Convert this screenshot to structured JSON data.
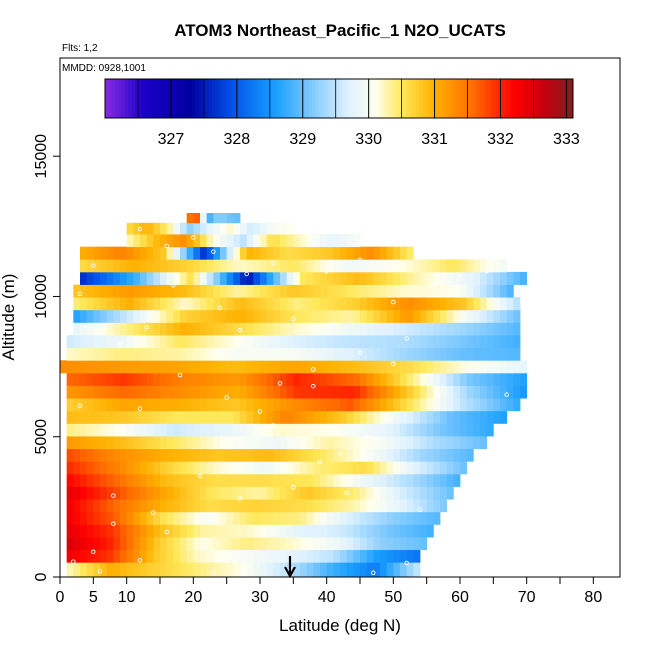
{
  "chart_data": {
    "type": "heatmap",
    "title": "ATOM3 Northeast_Pacific_1 N2O_UCATS",
    "flights_note": "Flts: 1,2",
    "dates_note": "MMDD: 0928,1001",
    "xlabel": "Latitude (deg N)",
    "ylabel": "Altitude (m)",
    "xlim": [
      0,
      84
    ],
    "ylim": [
      0,
      18500
    ],
    "x_ticks": [
      0,
      5,
      10,
      20,
      30,
      40,
      50,
      60,
      70,
      80
    ],
    "x_tick_labels": [
      "0",
      "5",
      "10",
      "20",
      "30",
      "40",
      "50",
      "60",
      "70",
      "80"
    ],
    "x_minor_ticks": [
      15,
      25,
      35,
      45,
      55,
      65,
      75
    ],
    "y_ticks": [
      0,
      5000,
      10000,
      15000
    ],
    "y_tick_labels": [
      "0",
      "5000",
      "10000",
      "15000"
    ],
    "colorbar": {
      "min": 326.0,
      "max": 333.1,
      "ticks": [
        327,
        328,
        329,
        330,
        331,
        332,
        333
      ],
      "tick_labels": [
        "327",
        "328",
        "329",
        "330",
        "331",
        "332",
        "333"
      ],
      "stops": [
        {
          "v": 326.0,
          "c": "#8a2be2"
        },
        {
          "v": 326.6,
          "c": "#1a00c8"
        },
        {
          "v": 327.3,
          "c": "#0000a0"
        },
        {
          "v": 327.9,
          "c": "#0050e8"
        },
        {
          "v": 328.6,
          "c": "#1aa0ff"
        },
        {
          "v": 329.2,
          "c": "#8ccfff"
        },
        {
          "v": 329.7,
          "c": "#e0f2ff"
        },
        {
          "v": 330.1,
          "c": "#fffff0"
        },
        {
          "v": 330.5,
          "c": "#ffe85a"
        },
        {
          "v": 331.0,
          "c": "#ffb000"
        },
        {
          "v": 331.6,
          "c": "#ff6a00"
        },
        {
          "v": 332.2,
          "c": "#ff0000"
        },
        {
          "v": 332.7,
          "c": "#c00010"
        },
        {
          "v": 333.1,
          "c": "#802020"
        }
      ]
    },
    "arrow_latitude": 34.5,
    "layers": [
      {
        "alt": 300,
        "lat0": 1,
        "lat1": 54,
        "v": [
          330.2,
          331.0,
          330.7,
          330.4,
          330.1,
          329.5,
          328.8,
          328.3,
          329.6
        ]
      },
      {
        "alt": 750,
        "lat0": 1,
        "lat1": 54,
        "v": [
          332.3,
          331.9,
          330.8,
          330.2,
          330.0,
          329.8,
          329.5,
          328.6,
          328.2
        ]
      },
      {
        "alt": 1200,
        "lat0": 1,
        "lat1": 55,
        "v": [
          332.5,
          332.0,
          330.8,
          330.1,
          330.4,
          330.2,
          329.9,
          329.2,
          329.0
        ]
      },
      {
        "alt": 1650,
        "lat0": 1,
        "lat1": 56,
        "v": [
          332.4,
          331.9,
          330.9,
          330.3,
          330.2,
          329.8,
          329.6,
          329.1,
          328.8
        ]
      },
      {
        "alt": 2100,
        "lat0": 1,
        "lat1": 57,
        "v": [
          332.3,
          331.7,
          330.6,
          330.0,
          330.5,
          330.4,
          329.7,
          329.2,
          328.9
        ]
      },
      {
        "alt": 2550,
        "lat0": 1,
        "lat1": 58,
        "v": [
          332.3,
          331.6,
          331.0,
          330.6,
          330.7,
          330.6,
          330.3,
          329.8,
          329.1
        ]
      },
      {
        "alt": 3000,
        "lat0": 1,
        "lat1": 59,
        "v": [
          332.4,
          331.8,
          331.1,
          330.5,
          330.3,
          330.8,
          330.4,
          329.6,
          329.0
        ]
      },
      {
        "alt": 3450,
        "lat0": 1,
        "lat1": 60,
        "v": [
          332.2,
          331.6,
          330.9,
          330.6,
          330.6,
          330.5,
          329.9,
          329.4,
          328.8
        ]
      },
      {
        "alt": 3900,
        "lat0": 1,
        "lat1": 61,
        "v": [
          332.0,
          331.4,
          330.7,
          330.2,
          329.9,
          330.4,
          330.6,
          329.7,
          329.0
        ]
      },
      {
        "alt": 4350,
        "lat0": 1,
        "lat1": 62,
        "v": [
          331.8,
          331.3,
          331.0,
          330.8,
          330.9,
          330.5,
          330.0,
          329.3,
          328.9
        ]
      },
      {
        "alt": 4800,
        "lat0": 1,
        "lat1": 64,
        "v": [
          331.2,
          330.9,
          330.5,
          330.1,
          329.9,
          330.3,
          330.0,
          329.4,
          329.0
        ]
      },
      {
        "alt": 5250,
        "lat0": 1,
        "lat1": 65,
        "v": [
          330.4,
          330.1,
          329.6,
          329.8,
          330.2,
          330.1,
          329.8,
          329.1,
          328.7
        ]
      },
      {
        "alt": 5700,
        "lat0": 1,
        "lat1": 67,
        "v": [
          330.9,
          330.8,
          330.5,
          330.5,
          331.4,
          330.8,
          329.9,
          329.0,
          328.6
        ]
      },
      {
        "alt": 6150,
        "lat0": 1,
        "lat1": 69,
        "v": [
          330.7,
          331.1,
          331.0,
          330.8,
          331.3,
          331.7,
          330.6,
          329.5,
          328.7
        ]
      },
      {
        "alt": 6600,
        "lat0": 1,
        "lat1": 70,
        "v": [
          331.2,
          331.6,
          331.3,
          331.0,
          331.9,
          332.0,
          330.7,
          329.3,
          328.5
        ]
      },
      {
        "alt": 7050,
        "lat0": 1,
        "lat1": 70,
        "v": [
          331.6,
          331.9,
          331.4,
          331.2,
          332.0,
          331.6,
          330.4,
          329.1,
          328.6
        ]
      },
      {
        "alt": 7500,
        "lat0": 0,
        "lat1": 70,
        "v": [
          331.3,
          331.2,
          331.1,
          330.9,
          331.1,
          330.9,
          330.6,
          330.1,
          329.8
        ]
      },
      {
        "alt": 7950,
        "lat0": 1,
        "lat1": 69,
        "v": [
          330.2,
          330.4,
          330.3,
          330.0,
          330.0,
          329.7,
          329.3,
          329.0,
          328.9
        ]
      },
      {
        "alt": 8400,
        "lat0": 1,
        "lat1": 69,
        "v": [
          329.6,
          329.9,
          330.5,
          330.1,
          329.7,
          329.5,
          329.4,
          329.1,
          328.8
        ]
      },
      {
        "alt": 8850,
        "lat0": 2,
        "lat1": 69,
        "v": [
          329.8,
          330.4,
          331.0,
          330.6,
          330.2,
          329.9,
          329.6,
          329.3,
          328.9
        ]
      },
      {
        "alt": 9300,
        "lat0": 2,
        "lat1": 69,
        "v": [
          328.6,
          329.6,
          330.7,
          331.0,
          330.5,
          330.3,
          331.2,
          330.0,
          329.0
        ]
      },
      {
        "alt": 9750,
        "lat0": 2,
        "lat1": 69,
        "v": [
          330.4,
          331.0,
          330.2,
          330.9,
          330.4,
          330.7,
          331.3,
          330.8,
          329.4
        ]
      },
      {
        "alt": 10200,
        "lat0": 2,
        "lat1": 68,
        "v": [
          330.8,
          331.2,
          330.9,
          330.3,
          330.8,
          330.5,
          330.2,
          330.1,
          328.8
        ]
      },
      {
        "alt": 10650,
        "lat0": 3,
        "lat1": 70,
        "v": [
          327.6,
          328.8,
          330.6,
          327.4,
          330.5,
          330.9,
          330.3,
          329.8,
          328.8
        ]
      },
      {
        "alt": 11100,
        "lat0": 3,
        "lat1": 67,
        "v": [
          330.6,
          331.0,
          330.7,
          330.2,
          330.5,
          329.9,
          330.1,
          330.5,
          329.9
        ]
      },
      {
        "alt": 11550,
        "lat0": 3,
        "lat1": 53,
        "v": [
          331.0,
          331.4,
          330.8,
          327.6,
          331.0,
          330.6,
          330.8,
          331.3,
          330.4
        ]
      },
      {
        "alt": 12000,
        "lat0": 10,
        "lat1": 45,
        "v": [
          330.2,
          330.9,
          331.3,
          330.1,
          329.5,
          330.6,
          330.2,
          329.8,
          330.0
        ]
      },
      {
        "alt": 12450,
        "lat0": 10,
        "lat1": 35,
        "v": [
          330.6,
          331.0,
          330.4,
          329.2,
          329.8,
          330.2,
          329.6,
          330.0,
          330.1
        ]
      },
      {
        "alt": 12800,
        "lat0": 19,
        "lat1": 27,
        "v": [
          330.8,
          332.3,
          331.0,
          328.6,
          329.1,
          329.2,
          329.1,
          329.0,
          329.0
        ]
      }
    ],
    "sample_points": [
      [
        6,
        0.2
      ],
      [
        12,
        0.6
      ],
      [
        23,
        0.15
      ],
      [
        35,
        0.3
      ],
      [
        47,
        0.15
      ],
      [
        52,
        0.5
      ],
      [
        2,
        0.55
      ],
      [
        5,
        0.9
      ],
      [
        8,
        1.9
      ],
      [
        14,
        2.3
      ],
      [
        27,
        2.8
      ],
      [
        35,
        3.2
      ],
      [
        39,
        4.1
      ],
      [
        42,
        4.4
      ],
      [
        46,
        5.0
      ],
      [
        49,
        5.6
      ],
      [
        3,
        6.1
      ],
      [
        12,
        6.0
      ],
      [
        25,
        6.4
      ],
      [
        33,
        6.9
      ],
      [
        38,
        7.4
      ],
      [
        45,
        8.0
      ],
      [
        50,
        7.6
      ],
      [
        18,
        7.2
      ],
      [
        9,
        8.3
      ],
      [
        27,
        8.8
      ],
      [
        35,
        9.2
      ],
      [
        41,
        9.0
      ],
      [
        52,
        8.5
      ],
      [
        13,
        8.9
      ],
      [
        3,
        10.1
      ],
      [
        17,
        10.4
      ],
      [
        28,
        10.8
      ],
      [
        32,
        11.2
      ],
      [
        40,
        10.9
      ],
      [
        45,
        11.3
      ],
      [
        5,
        11.1
      ],
      [
        23,
        11.6
      ],
      [
        30,
        11.9
      ],
      [
        12,
        12.4
      ],
      [
        20,
        12.1
      ],
      [
        36,
        12.3
      ],
      [
        50,
        9.8
      ],
      [
        56,
        10.4
      ],
      [
        60,
        10.7
      ],
      [
        64,
        10.9
      ],
      [
        70,
        11.0
      ],
      [
        67,
        6.5
      ],
      [
        38,
        6.8
      ],
      [
        32,
        5.4
      ],
      [
        27,
        4.7
      ],
      [
        43,
        3.0
      ],
      [
        54,
        2.4
      ],
      [
        57,
        1.2
      ],
      [
        8,
        2.9
      ],
      [
        16,
        1.6
      ],
      [
        21,
        3.6
      ],
      [
        30,
        5.9
      ],
      [
        24,
        9.6
      ],
      [
        16,
        11.8
      ]
    ]
  }
}
